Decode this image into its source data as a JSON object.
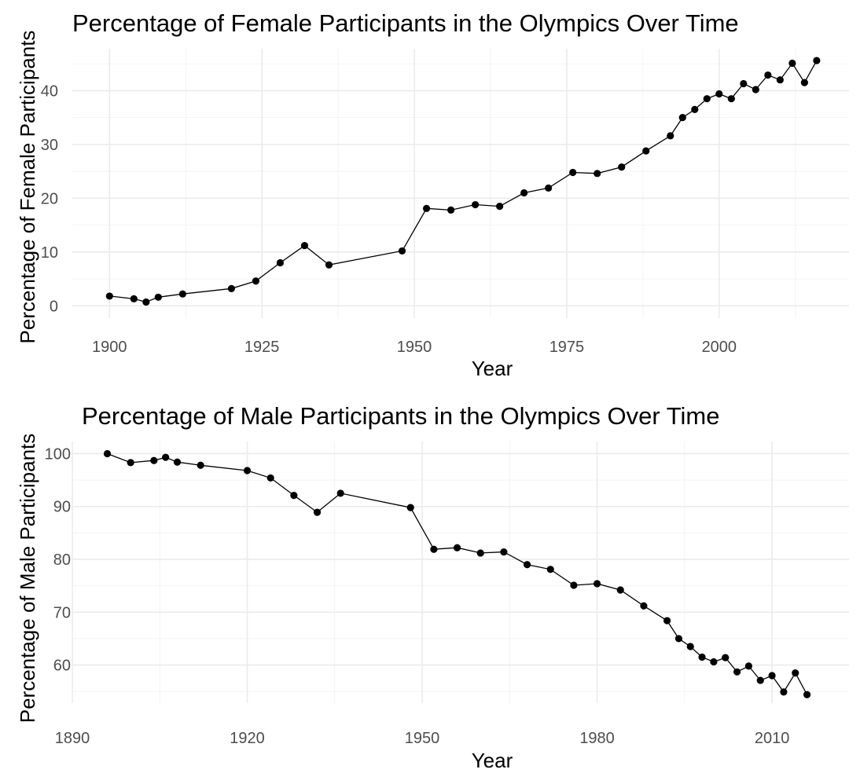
{
  "chart_data": [
    {
      "type": "line",
      "title": "Percentage of Female Participants in the Olympics Over Time",
      "xlabel": "Year",
      "ylabel": "Percentage of Female Participants",
      "xlim": [
        1893.9,
        2021.3
      ],
      "ylim": [
        -2.3,
        47.8
      ],
      "x_ticks": [
        1900,
        1925,
        1950,
        1975,
        2000
      ],
      "y_ticks": [
        0,
        10,
        20,
        30,
        40
      ],
      "grid": true,
      "series": [
        {
          "marker": "point",
          "x": [
            1900,
            1904,
            1906,
            1908,
            1912,
            1920,
            1924,
            1928,
            1932,
            1936,
            1948,
            1952,
            1956,
            1960,
            1964,
            1968,
            1972,
            1976,
            1980,
            1984,
            1988,
            1992,
            1994,
            1996,
            1998,
            2000,
            2002,
            2004,
            2006,
            2008,
            2010,
            2012,
            2014,
            2016
          ],
          "y": [
            1.8,
            1.3,
            0.7,
            1.6,
            2.2,
            3.2,
            4.6,
            8.0,
            11.2,
            7.6,
            10.2,
            18.1,
            17.8,
            18.8,
            18.5,
            21.0,
            21.9,
            24.8,
            24.6,
            25.8,
            28.8,
            31.6,
            35.0,
            36.5,
            38.5,
            39.4,
            38.5,
            41.3,
            40.2,
            42.9,
            42.0,
            45.1,
            41.5,
            45.6
          ]
        }
      ]
    },
    {
      "type": "line",
      "title": "Percentage of Male Participants in the Olympics Over Time",
      "xlabel": "Year",
      "ylabel": "Percentage of Male Participants",
      "xlim": [
        1890,
        2023.2
      ],
      "ylim": [
        52.8,
        102.3
      ],
      "x_ticks": [
        1890,
        1920,
        1950,
        1980,
        2010
      ],
      "y_ticks": [
        60,
        70,
        80,
        90,
        100
      ],
      "grid": true,
      "series": [
        {
          "marker": "point",
          "x": [
            1896,
            1900,
            1904,
            1906,
            1908,
            1912,
            1920,
            1924,
            1928,
            1932,
            1936,
            1948,
            1952,
            1956,
            1960,
            1964,
            1968,
            1972,
            1976,
            1980,
            1984,
            1988,
            1992,
            1994,
            1996,
            1998,
            2000,
            2002,
            2004,
            2006,
            2008,
            2010,
            2012,
            2014,
            2016
          ],
          "y": [
            100.0,
            98.3,
            98.7,
            99.3,
            98.4,
            97.8,
            96.8,
            95.4,
            92.1,
            88.9,
            92.5,
            89.8,
            81.9,
            82.2,
            81.2,
            81.4,
            79.0,
            78.1,
            75.1,
            75.4,
            74.2,
            71.2,
            68.4,
            65.0,
            63.5,
            61.5,
            60.6,
            61.4,
            58.7,
            59.8,
            57.1,
            58.0,
            54.9,
            58.5,
            54.4
          ]
        }
      ]
    }
  ]
}
